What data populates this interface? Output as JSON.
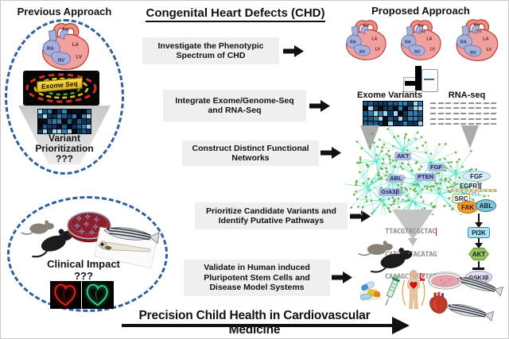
{
  "titles": {
    "previous_approach": "Previous Approach",
    "main": "Congenital Heart Defects (CHD)",
    "proposed_approach": "Proposed  Approach",
    "banner": "Precision Child Health in Cardiovascular Medicine"
  },
  "steps": [
    {
      "label": "Investigate the Phenotypic Spectrum of CHD"
    },
    {
      "label": "Integrate Exome/Genome-Seq and RNA-Seq"
    },
    {
      "label": "Construct Distinct Functional Networks"
    },
    {
      "label": "Prioritize Candidate Variants and Identify Putative Pathways"
    },
    {
      "label": "Validate in  Human induced Pluripotent Stem Cells and Disease Model Systems"
    }
  ],
  "previous_panel": {
    "exome_seq_tag": "Exome Seq",
    "funnel_caption": [
      "Variant",
      "Prioritization",
      "???"
    ]
  },
  "clinical_panel": {
    "caption": "Clinical  Impact",
    "question": "???"
  },
  "proposed_panel": {
    "exome_variants_label": "Exome Variants",
    "rna_seq_label": "RNA-seq"
  },
  "heart_labels": {
    "ao": "Ao",
    "ra": "RA",
    "rv": "RV",
    "la": "LA",
    "lv": "LV",
    "pt": "PT"
  },
  "network_hubs": [
    {
      "label": "AKT"
    },
    {
      "label": "FGF"
    },
    {
      "label": "PTEN"
    },
    {
      "label": "ABL"
    },
    {
      "label": "Gsk3β"
    }
  ],
  "pathway": {
    "fgf": "FGF",
    "egfr": "EGFR",
    "src": "SRC",
    "fak": "FAK",
    "abl": "ABL",
    "pi3k": "PI3K",
    "akt": "AKT",
    "gsk3b": "GSK3β"
  },
  "dna": {
    "lines": [
      {
        "pre": "TTACGTACGCTAC",
        "hl": "",
        "post": ""
      },
      {
        "pre": "CATC",
        "hl": "A",
        "post": "GTACATAG"
      },
      {
        "pre": "CAAAGCTAG",
        "hl": "G",
        "post": "TGT"
      }
    ]
  },
  "colors": {
    "dashed_ellipse": "#2e5f9e",
    "network_edge": "#3fe3c3",
    "node_dot": "#86b933",
    "step_box_bg": "#efefef",
    "highlight_red": "#e01b1b"
  }
}
